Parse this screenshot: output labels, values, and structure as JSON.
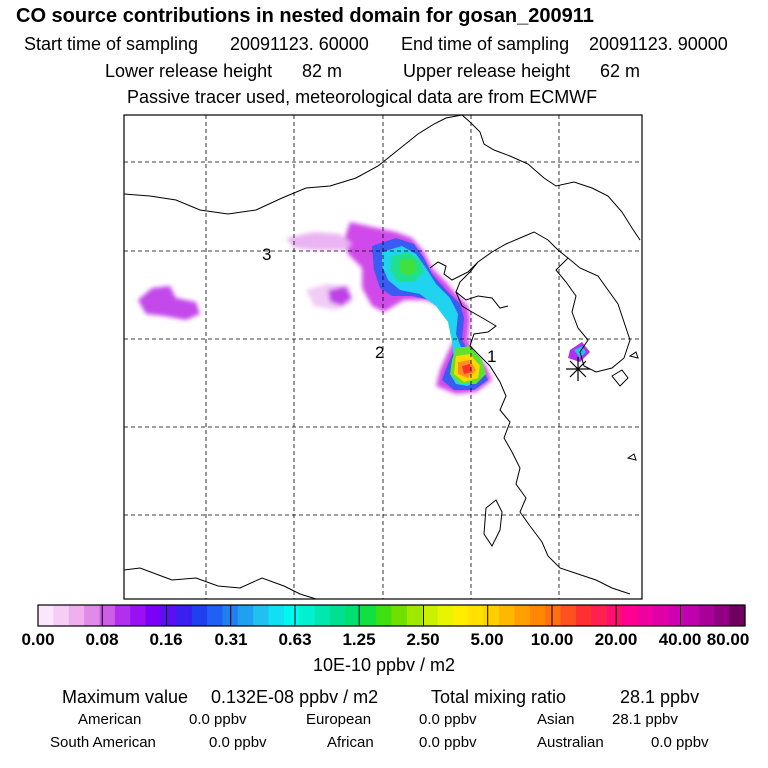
{
  "header": {
    "title": "CO  source contributions in nested domain for gosan_200911",
    "start_label": "Start time of sampling",
    "start_value": "20091123. 60000",
    "end_label": "End time of sampling",
    "end_value": "20091123. 90000",
    "lower_label": "Lower release height",
    "lower_value": "82 m",
    "upper_label": "Upper release height",
    "upper_value": "62 m",
    "note": "Passive tracer used, meteorological data are from ECMWF"
  },
  "chart_data": {
    "type": "heatmap",
    "title": "CO  source contributions in nested domain for gosan_200911",
    "units": "10E-10 ppbv / m2",
    "grid": true,
    "scale_labels": [
      "0.00",
      "0.08",
      "0.16",
      "0.31",
      "0.63",
      "1.25",
      "2.50",
      "5.00",
      "10.00",
      "20.00",
      "40.00",
      "80.00"
    ],
    "scale_colors": [
      "#fbe6fb",
      "#f6cdf6",
      "#f0b0f0",
      "#e08be8",
      "#cc5fe6",
      "#b030ee",
      "#9a10f2",
      "#7a00f6",
      "#5a10f0",
      "#3a20f0",
      "#2040f0",
      "#2060f2",
      "#2080f0",
      "#20a0f0",
      "#20c0f0",
      "#10e0f2",
      "#00f8f0",
      "#00f0d0",
      "#00e8b0",
      "#00e090",
      "#00e070",
      "#10e040",
      "#40e010",
      "#70e000",
      "#a0e800",
      "#c8f000",
      "#e8f400",
      "#ffee00",
      "#ffe000",
      "#ffd000",
      "#ffb800",
      "#ffa000",
      "#ff8800",
      "#ff7010",
      "#ff5020",
      "#ff3030",
      "#ff2050",
      "#ff1070",
      "#ff0090",
      "#f000a0",
      "#e000a8",
      "#d000b0",
      "#c000b0",
      "#a80098",
      "#900080",
      "#700060"
    ],
    "point_labels": [
      {
        "label": "1",
        "lon": 120.5,
        "lat": 31.5
      },
      {
        "label": "2",
        "lon": 115.0,
        "lat": 31.5
      },
      {
        "label": "3",
        "lon": 110.5,
        "lat": 40.0
      }
    ],
    "receptor": {
      "name": "gosan",
      "lon": 126.2,
      "lat": 33.3
    }
  },
  "stats": {
    "max_label": "Maximum value",
    "max_value": "0.132E-08 ppbv / m2",
    "total_label": "Total mixing ratio",
    "total_value": "28.1 ppbv"
  },
  "regions": [
    {
      "name": "American",
      "value": "0.0 ppbv"
    },
    {
      "name": "European",
      "value": "0.0 ppbv"
    },
    {
      "name": "Asian",
      "value": "28.1 ppbv"
    },
    {
      "name": "South American",
      "value": "0.0 ppbv"
    },
    {
      "name": "African",
      "value": "0.0 ppbv"
    },
    {
      "name": "Australian",
      "value": "0.0 ppbv"
    }
  ]
}
